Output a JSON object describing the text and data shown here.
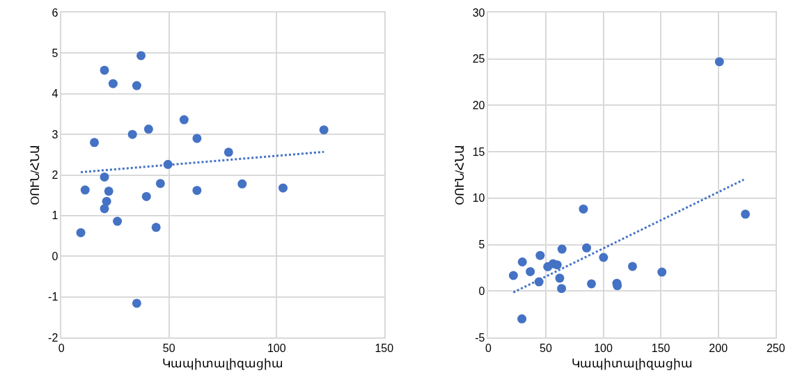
{
  "chart_data": [
    {
      "type": "scatter",
      "xlabel": "Կապիտալիզացիա",
      "ylabel": "ՕՈՒՆ/ՀՆԱ",
      "xlim": [
        0,
        150
      ],
      "ylim": [
        -2,
        6
      ],
      "xticks": [
        0,
        50,
        100,
        150
      ],
      "yticks": [
        -2,
        -1,
        0,
        1,
        2,
        3,
        4,
        5,
        6
      ],
      "grid": true,
      "series": [
        {
          "color": "#4472c4",
          "marker": "circle",
          "x": [
            9,
            11,
            15.3,
            20,
            20,
            20,
            21,
            22,
            24,
            26,
            33,
            35,
            37,
            35,
            39.5,
            40.5,
            44,
            46,
            49.5,
            57,
            63,
            63,
            77.7,
            84,
            103,
            122
          ],
          "values": [
            0.58,
            1.63,
            2.8,
            4.58,
            1.95,
            1.17,
            1.35,
            1.6,
            4.25,
            0.86,
            3.0,
            4.2,
            4.94,
            -1.16,
            1.47,
            3.13,
            0.71,
            1.79,
            2.26,
            3.36,
            2.9,
            1.62,
            2.56,
            1.78,
            1.68,
            3.11
          ]
        },
        {
          "type": "line",
          "line_style": "dotted",
          "marker": "none",
          "color": "#4472c4",
          "x": [
            9,
            122
          ],
          "values": [
            2.07,
            2.57
          ]
        }
      ]
    },
    {
      "type": "scatter",
      "xlabel": "Կապիտալիզացիա",
      "ylabel": "ՕՈՒՆ/ՀՆԱ",
      "xlim": [
        0,
        250
      ],
      "ylim": [
        -5,
        30
      ],
      "xticks": [
        0,
        50,
        100,
        150,
        200,
        250
      ],
      "yticks": [
        -5,
        0,
        5,
        10,
        15,
        20,
        25,
        30
      ],
      "grid": true,
      "series": [
        {
          "color": "#4472c4",
          "marker": "circle",
          "x": [
            21.8,
            29.6,
            36.5,
            45.1,
            44.1,
            29.2,
            51.7,
            56.3,
            59.9,
            62.1,
            63.7,
            64.1,
            82.7,
            85.5,
            89.7,
            100.2,
            111.8,
            112.2,
            125.4,
            151,
            201,
            223.6
          ],
          "values": [
            1.67,
            3.13,
            2.09,
            3.83,
            0.99,
            -3.0,
            2.62,
            2.94,
            2.82,
            1.38,
            0.27,
            4.51,
            8.83,
            4.64,
            0.78,
            3.62,
            0.83,
            0.58,
            2.65,
            2.04,
            24.7,
            8.28
          ]
        },
        {
          "type": "line",
          "line_style": "dotted",
          "marker": "none",
          "color": "#4472c4",
          "x": [
            21.8,
            222.2
          ],
          "values": [
            -0.15,
            12.0
          ]
        }
      ]
    }
  ]
}
